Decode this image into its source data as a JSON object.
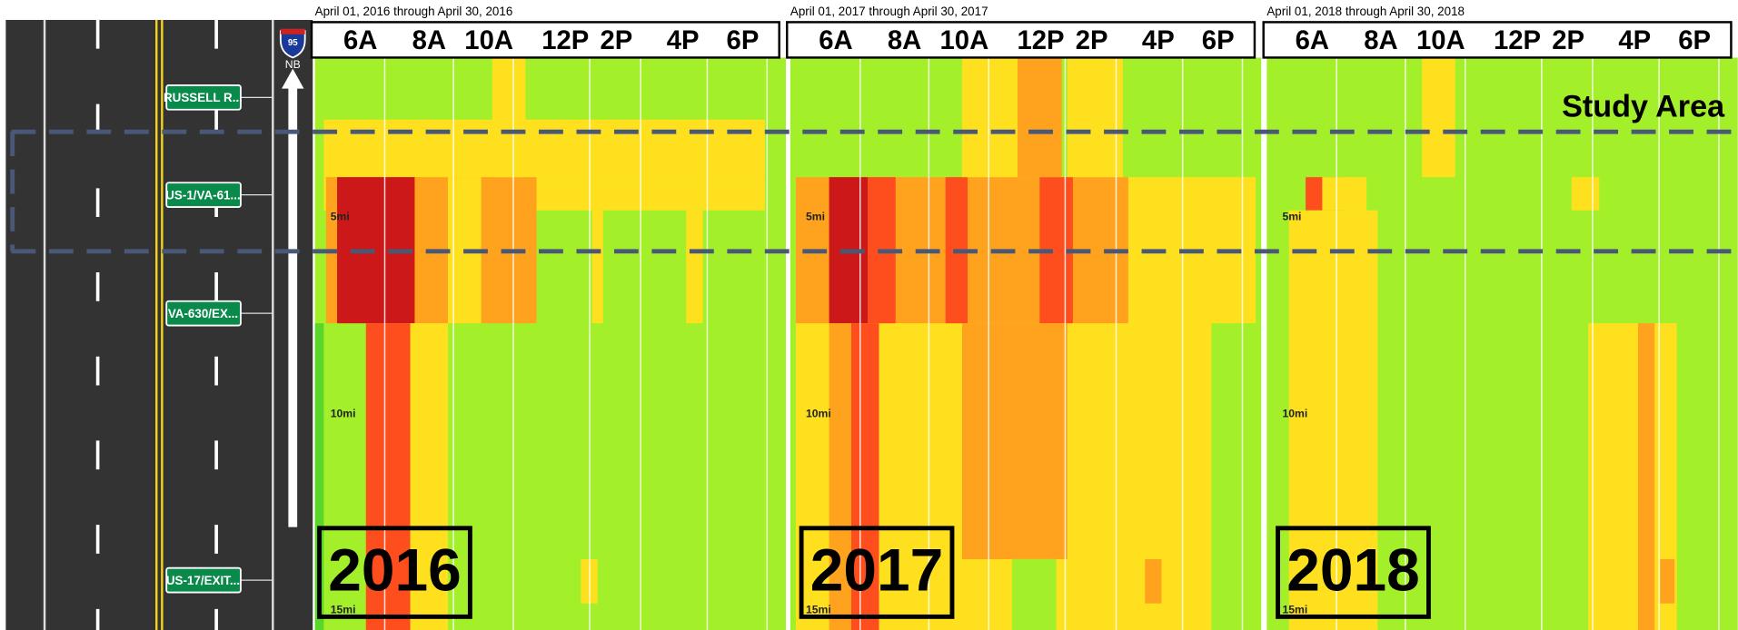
{
  "road": {
    "shield": "95",
    "direction": "NB",
    "exits": [
      "RUSSELL R...",
      "US-1/VA-61...",
      "VA-630/EX...",
      "US-17/EXIT..."
    ]
  },
  "annotation": "Study Area",
  "panels": [
    {
      "period": "April 01, 2016 through April 30, 2016",
      "year": "2016",
      "hours": [
        "6A",
        "8A",
        "10A",
        "12P",
        "2P",
        "4P",
        "6P"
      ],
      "miles": [
        "5mi",
        "10mi",
        "15mi"
      ]
    },
    {
      "period": "April 01, 2017 through April 30, 2017",
      "year": "2017",
      "hours": [
        "6A",
        "8A",
        "10A",
        "12P",
        "2P",
        "4P",
        "6P"
      ],
      "miles": [
        "5mi",
        "10mi",
        "15mi"
      ]
    },
    {
      "period": "April 01, 2018 through April 30, 2018",
      "year": "2018",
      "hours": [
        "6A",
        "8A",
        "10A",
        "12P",
        "2P",
        "4P",
        "6P"
      ],
      "miles": [
        "5mi",
        "10mi",
        "15mi"
      ]
    }
  ]
}
